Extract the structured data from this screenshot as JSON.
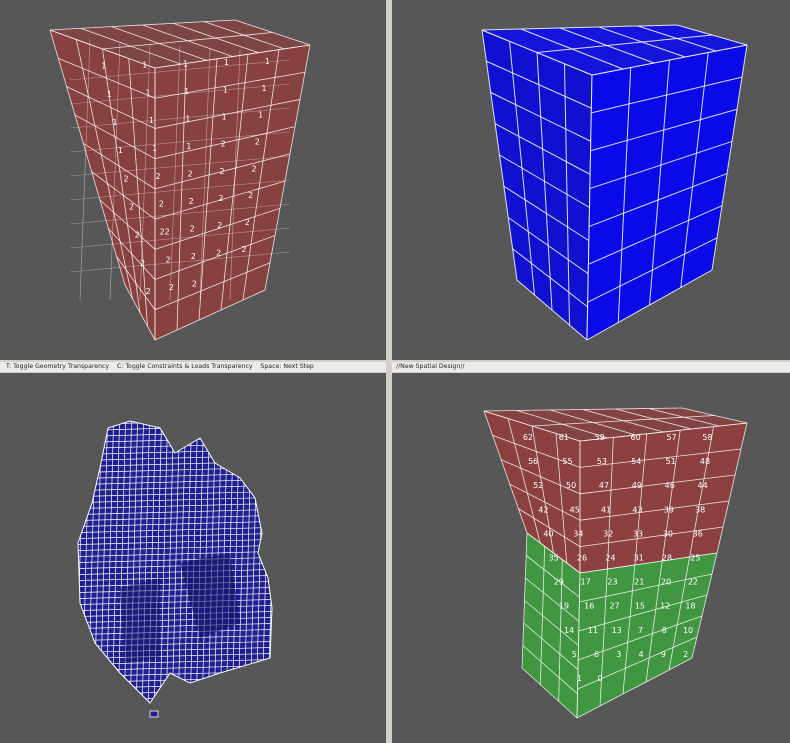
{
  "status_bar": {
    "left": "T: Toggle Geometry Transparency    C: Toggle Constraints & Loads Transparency    Space: Next Step",
    "right": "//New Spatial Design//"
  },
  "viewports": {
    "top_left": {
      "fill": "#b03030",
      "labels": [
        "1",
        "1",
        "1",
        "1",
        "1",
        "1",
        "1",
        "1",
        "1",
        "1",
        "1",
        "1",
        "1",
        "1",
        "1",
        "1",
        "1",
        "1",
        "2",
        "2",
        "2",
        "2",
        "2",
        "2",
        "2",
        "2",
        "2",
        "2",
        "2",
        "2",
        "2",
        "22",
        "2",
        "2",
        "2",
        "2",
        "2",
        "2",
        "2",
        "2",
        "2",
        "2",
        "2"
      ]
    },
    "top_right": {
      "fill": "#1010d0"
    },
    "bottom_left": {
      "fill": "#1f1f8f"
    },
    "bottom_right": {
      "upper_fill": "#b03030",
      "lower_fill": "#38b038",
      "labels": [
        "62",
        "61",
        "59",
        "60",
        "57",
        "58",
        "56",
        "55",
        "53",
        "54",
        "51",
        "48",
        "52",
        "50",
        "47",
        "49",
        "46",
        "44",
        "42",
        "45",
        "41",
        "43",
        "39",
        "38",
        "40",
        "34",
        "32",
        "33",
        "30",
        "36",
        "35",
        "26",
        "24",
        "31",
        "28",
        "25",
        "29",
        "17",
        "23",
        "21",
        "20",
        "22",
        "19",
        "16",
        "27",
        "15",
        "12",
        "18",
        "14",
        "11",
        "13",
        "7",
        "8",
        "10",
        "5",
        "6",
        "3",
        "4",
        "9",
        "2",
        "1",
        "0"
      ]
    }
  },
  "colors": {
    "viewport_bg": "#575757",
    "frame": "#d4d0c8",
    "wire": "#ffffff"
  }
}
